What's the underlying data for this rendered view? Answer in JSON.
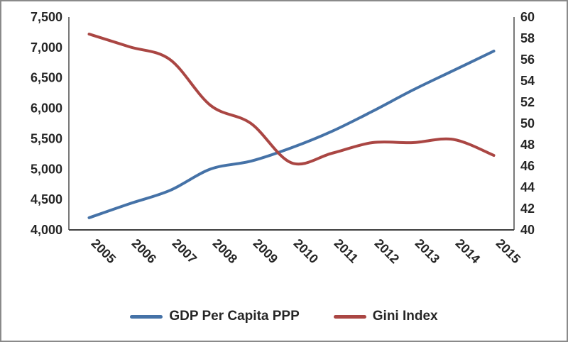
{
  "chart_data": {
    "type": "line",
    "title": "",
    "categories": [
      "2005",
      "2006",
      "2007",
      "2008",
      "2009",
      "2010",
      "2011",
      "2012",
      "2013",
      "2014",
      "2015"
    ],
    "series": [
      {
        "name": "GDP Per Capita PPP",
        "axis": "left",
        "color": "#4572a7",
        "values": [
          4200,
          4430,
          4650,
          5000,
          5130,
          5350,
          5620,
          5950,
          6300,
          6620,
          6940
        ]
      },
      {
        "name": "Gini Index",
        "axis": "right",
        "color": "#aa4643",
        "values": [
          58.4,
          57.2,
          56.0,
          51.7,
          50.0,
          46.3,
          47.2,
          48.2,
          48.2,
          48.5,
          47.0
        ]
      }
    ],
    "axes": {
      "left": {
        "min": 4000,
        "max": 7500,
        "tick_labels": [
          "4,000",
          "4,500",
          "5,000",
          "5,500",
          "6,000",
          "6,500",
          "7,000",
          "7,500"
        ]
      },
      "right": {
        "min": 40,
        "max": 60,
        "tick_labels": [
          "40",
          "42",
          "44",
          "46",
          "48",
          "50",
          "52",
          "54",
          "56",
          "58",
          "60"
        ]
      }
    },
    "grid": false,
    "legend_position": "bottom",
    "x_label_rotation_deg": 45
  }
}
